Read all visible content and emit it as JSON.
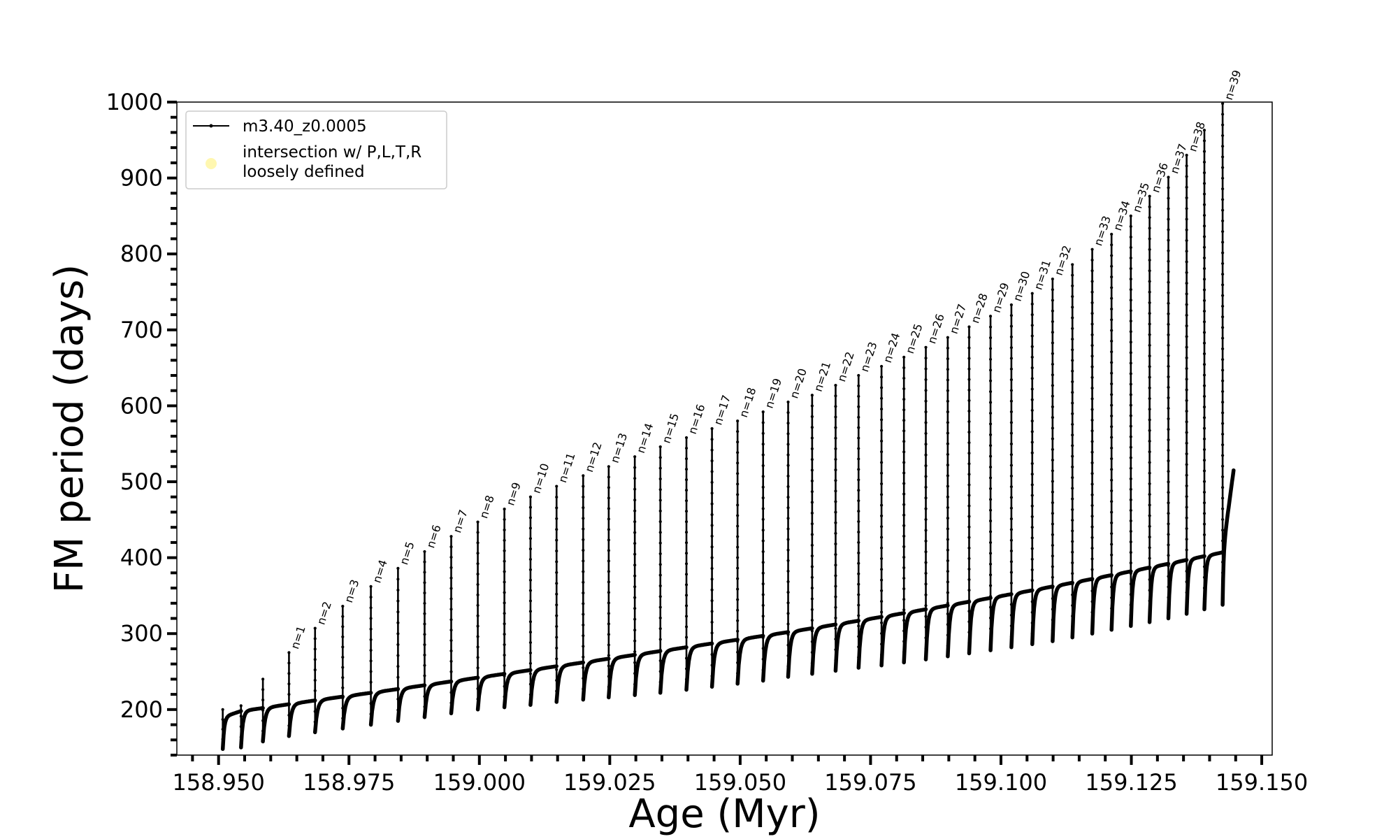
{
  "chart_data": {
    "type": "line",
    "xlabel": "Age (Myr)",
    "ylabel": "FM period (days)",
    "xlim": [
      158.942,
      159.152
    ],
    "ylim": [
      140,
      1000
    ],
    "xticks": [
      158.95,
      158.975,
      159.0,
      159.025,
      159.05,
      159.075,
      159.1,
      159.125,
      159.15
    ],
    "xtick_labels": [
      "158.950",
      "158.975",
      "159.000",
      "159.025",
      "159.050",
      "159.075",
      "159.100",
      "159.125",
      "159.150"
    ],
    "yticks": [
      200,
      300,
      400,
      500,
      600,
      700,
      800,
      900,
      1000
    ],
    "ytick_labels": [
      "200",
      "300",
      "400",
      "500",
      "600",
      "700",
      "800",
      "900",
      "1000"
    ],
    "grid": false,
    "legend": {
      "placement": "top-left",
      "entries": [
        {
          "label": "m3.40_z0.0005",
          "color": "#000000",
          "marker": "line-dot"
        },
        {
          "label": "intersection w/ P,L,T,R",
          "label2": "loosely defined",
          "color": "#fff7b0",
          "marker": "circle"
        }
      ]
    },
    "series": [
      {
        "name": "m3.40_z0.0005",
        "color": "#000000",
        "description_of_structure": "sawtooth pulses",
        "pulses": [
          {
            "x": 158.9508,
            "base": 190,
            "peak": 200,
            "dip": 148,
            "label": ""
          },
          {
            "x": 158.9543,
            "base": 198,
            "peak": 205,
            "dip": 150,
            "label": ""
          },
          {
            "x": 158.9585,
            "base": 202,
            "peak": 240,
            "dip": 158,
            "label": ""
          },
          {
            "x": 158.9635,
            "base": 207,
            "peak": 275,
            "dip": 165,
            "label": "n=1"
          },
          {
            "x": 158.9685,
            "base": 212,
            "peak": 307,
            "dip": 170,
            "label": "n=2"
          },
          {
            "x": 158.9738,
            "base": 217,
            "peak": 336,
            "dip": 175,
            "label": "n=3"
          },
          {
            "x": 158.9792,
            "base": 222,
            "peak": 362,
            "dip": 180,
            "label": "n=4"
          },
          {
            "x": 158.9844,
            "base": 227,
            "peak": 386,
            "dip": 185,
            "label": "n=5"
          },
          {
            "x": 158.9895,
            "base": 232,
            "peak": 408,
            "dip": 190,
            "label": "n=6"
          },
          {
            "x": 158.9946,
            "base": 237,
            "peak": 428,
            "dip": 195,
            "label": "n=7"
          },
          {
            "x": 158.9997,
            "base": 242,
            "peak": 447,
            "dip": 200,
            "label": "n=8"
          },
          {
            "x": 159.0048,
            "base": 247,
            "peak": 464,
            "dip": 203,
            "label": "n=9"
          },
          {
            "x": 159.0098,
            "base": 252,
            "peak": 480,
            "dip": 206,
            "label": "n=10"
          },
          {
            "x": 159.0148,
            "base": 257,
            "peak": 494,
            "dip": 210,
            "label": "n=11"
          },
          {
            "x": 159.0199,
            "base": 262,
            "peak": 508,
            "dip": 213,
            "label": "n=12"
          },
          {
            "x": 159.0248,
            "base": 267,
            "peak": 520,
            "dip": 216,
            "label": "n=13"
          },
          {
            "x": 159.0298,
            "base": 272,
            "peak": 533,
            "dip": 219,
            "label": "n=14"
          },
          {
            "x": 159.0347,
            "base": 277,
            "peak": 546,
            "dip": 222,
            "label": "n=15"
          },
          {
            "x": 159.0397,
            "base": 282,
            "peak": 558,
            "dip": 226,
            "label": "n=16"
          },
          {
            "x": 159.0446,
            "base": 287,
            "peak": 570,
            "dip": 230,
            "label": "n=17"
          },
          {
            "x": 159.0495,
            "base": 292,
            "peak": 580,
            "dip": 234,
            "label": "n=18"
          },
          {
            "x": 159.0544,
            "base": 297,
            "peak": 592,
            "dip": 238,
            "label": "n=19"
          },
          {
            "x": 159.0592,
            "base": 302,
            "peak": 605,
            "dip": 243,
            "label": "n=20"
          },
          {
            "x": 159.0638,
            "base": 307,
            "peak": 614,
            "dip": 247,
            "label": "n=21"
          },
          {
            "x": 159.0683,
            "base": 312,
            "peak": 627,
            "dip": 251,
            "label": "n=22"
          },
          {
            "x": 159.0727,
            "base": 317,
            "peak": 640,
            "dip": 255,
            "label": "n=23"
          },
          {
            "x": 159.0771,
            "base": 322,
            "peak": 652,
            "dip": 258,
            "label": "n=24"
          },
          {
            "x": 159.0814,
            "base": 327,
            "peak": 664,
            "dip": 262,
            "label": "n=25"
          },
          {
            "x": 159.0856,
            "base": 332,
            "peak": 677,
            "dip": 266,
            "label": "n=26"
          },
          {
            "x": 159.0898,
            "base": 337,
            "peak": 690,
            "dip": 270,
            "label": "n=27"
          },
          {
            "x": 159.0939,
            "base": 342,
            "peak": 704,
            "dip": 274,
            "label": "n=28"
          },
          {
            "x": 159.098,
            "base": 347,
            "peak": 718,
            "dip": 278,
            "label": "n=29"
          },
          {
            "x": 159.102,
            "base": 352,
            "peak": 733,
            "dip": 282,
            "label": "n=30"
          },
          {
            "x": 159.106,
            "base": 357,
            "peak": 748,
            "dip": 286,
            "label": "n=31"
          },
          {
            "x": 159.1099,
            "base": 362,
            "peak": 767,
            "dip": 290,
            "label": "n=32"
          },
          {
            "x": 159.1137,
            "base": 367,
            "peak": 786,
            "dip": 295,
            "label": ""
          },
          {
            "x": 159.1175,
            "base": 372,
            "peak": 806,
            "dip": 300,
            "label": "n=33"
          },
          {
            "x": 159.1212,
            "base": 377,
            "peak": 826,
            "dip": 305,
            "label": "n=34"
          },
          {
            "x": 159.1249,
            "base": 382,
            "peak": 850,
            "dip": 310,
            "label": "n=35"
          },
          {
            "x": 159.1285,
            "base": 387,
            "peak": 876,
            "dip": 315,
            "label": "n=36"
          },
          {
            "x": 159.1321,
            "base": 392,
            "peak": 901,
            "dip": 320,
            "label": "n=37"
          },
          {
            "x": 159.1356,
            "base": 397,
            "peak": 930,
            "dip": 326,
            "label": "n=38"
          },
          {
            "x": 159.139,
            "base": 402,
            "peak": 963,
            "dip": 332,
            "label": ""
          },
          {
            "x": 159.1425,
            "base": 407,
            "peak": 998,
            "dip": 338,
            "label": "n=39"
          }
        ],
        "end": {
          "x": 159.1446,
          "y": 515
        }
      }
    ]
  }
}
